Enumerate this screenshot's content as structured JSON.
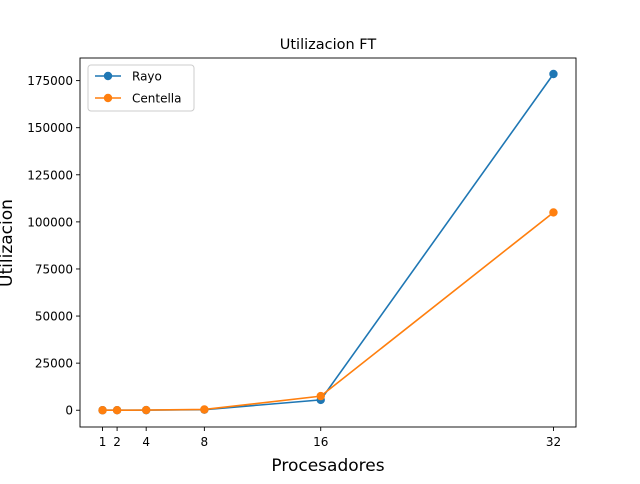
{
  "chart_data": {
    "type": "line",
    "title": "Utilizacion FT",
    "xlabel": "Procesadores",
    "ylabel": "Utilizacion",
    "x": [
      1,
      2,
      4,
      8,
      16,
      32
    ],
    "x_ticks": [
      1,
      2,
      4,
      8,
      16,
      32
    ],
    "y_ticks": [
      0,
      25000,
      50000,
      75000,
      100000,
      125000,
      150000,
      175000
    ],
    "xlim": [
      -0.55,
      33.55
    ],
    "ylim": [
      -8900,
      187000
    ],
    "grid": false,
    "legend_position": "top-left",
    "series": [
      {
        "name": "Rayo",
        "color": "#1f77b4",
        "values": [
          5,
          20,
          60,
          300,
          5500,
          178500
        ]
      },
      {
        "name": "Centella",
        "color": "#ff7f0e",
        "values": [
          5,
          20,
          100,
          400,
          7500,
          105000
        ]
      }
    ]
  }
}
